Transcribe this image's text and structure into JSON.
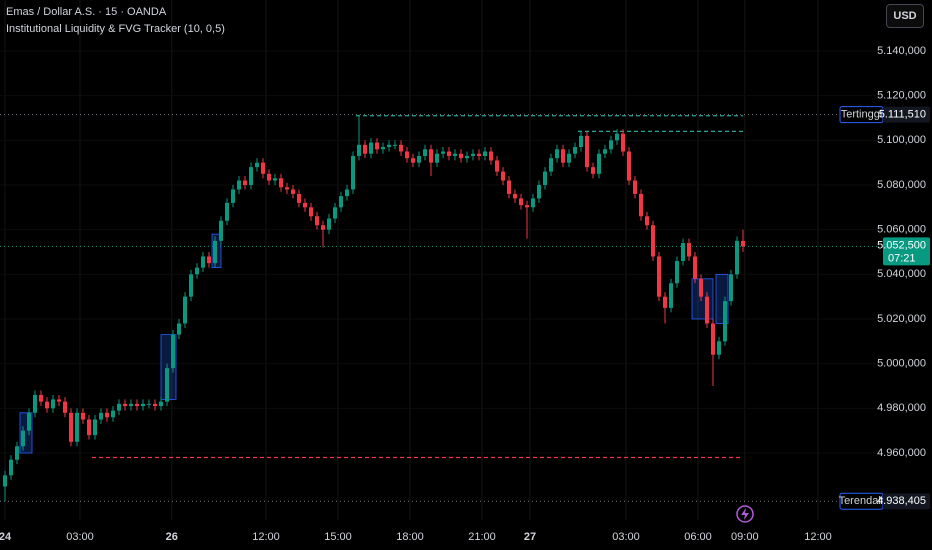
{
  "header": {
    "symbol": "Emas / Dollar A.S. · 15 · OANDA",
    "indicator": "Institutional Liquidity & FVG Tracker (10, 0,5)",
    "currency": "USD"
  },
  "chart_data": {
    "type": "candlestick",
    "up_color": "#089981",
    "down_color": "#f23645",
    "xlim": [
      -0.8333,
      145.8333
    ],
    "ylim": [
      4930000,
      5162836
    ],
    "yticks": [
      {
        "value": 4960000,
        "label": "4.960,000"
      },
      {
        "value": 4980000,
        "label": "4.980,000"
      },
      {
        "value": 5000000,
        "label": "5.000,000"
      },
      {
        "value": 5020000,
        "label": "5.020,000"
      },
      {
        "value": 5040000,
        "label": "5.040,000"
      },
      {
        "value": 5060000,
        "label": "5.060,000"
      },
      {
        "value": 5080000,
        "label": "5.080,000"
      },
      {
        "value": 5100000,
        "label": "5.100,000"
      },
      {
        "value": 5120000,
        "label": "5.120,000"
      },
      {
        "value": 5140000,
        "label": "5.140,000"
      }
    ],
    "xticks": [
      {
        "value": 0,
        "label": "24"
      },
      {
        "value": 12.5,
        "label": "03:00"
      },
      {
        "value": 27.8,
        "label": "26"
      },
      {
        "value": 43.5,
        "label": "12:00"
      },
      {
        "value": 55.5,
        "label": "15:00"
      },
      {
        "value": 67.5,
        "label": "18:00"
      },
      {
        "value": 79.5,
        "label": "21:00"
      },
      {
        "value": 87.5,
        "label": "27"
      },
      {
        "value": 103.5,
        "label": "03:00"
      },
      {
        "value": 115.5,
        "label": "06:00"
      },
      {
        "value": 123.3,
        "label": "09:00"
      },
      {
        "value": 135.5,
        "label": "12:00"
      }
    ],
    "open": [
      4945000,
      4950000,
      4957000,
      4963000,
      4970000,
      4978000,
      4986000,
      4983000,
      4980000,
      4984000,
      4983000,
      4978000,
      4965000,
      4978000,
      4975000,
      4968000,
      4975000,
      4978000,
      4976000,
      4979000,
      4982000,
      4981000,
      4982000,
      4981000,
      4982000,
      4982000,
      4981000,
      4983000,
      4998000,
      5013000,
      5018000,
      5030000,
      5040000,
      5043000,
      5048000,
      5045000,
      5055000,
      5064000,
      5072000,
      5078000,
      5082000,
      5080000,
      5088000,
      5090000,
      5085000,
      5082000,
      5083000,
      5079000,
      5078000,
      5076000,
      5072000,
      5070000,
      5066000,
      5062000,
      5060000,
      5065000,
      5070000,
      5075000,
      5078000,
      5093000,
      5098000,
      5094000,
      5099000,
      5096000,
      5097000,
      5098000,
      5098000,
      5095000,
      5092000,
      5090000,
      5093000,
      5096000,
      5090000,
      5094000,
      5095000,
      5093000,
      5094000,
      5092000,
      5093000,
      5094000,
      5093000,
      5095000,
      5091000,
      5086000,
      5082000,
      5076000,
      5074000,
      5071000,
      5070000,
      5074000,
      5080000,
      5086000,
      5092000,
      5096000,
      5090000,
      5094000,
      5097000,
      5102000,
      5088000,
      5085000,
      5094000,
      5096000,
      5100000,
      5103000,
      5095000,
      5082000,
      5076000,
      5066000,
      5062000,
      5048000,
      5030000,
      5025000,
      5036000,
      5046000,
      5054000,
      5048000,
      5038000,
      5030000,
      5018000,
      5004000,
      5010000,
      5028000,
      5040000,
      5055000
    ],
    "high": [
      4952000,
      4959000,
      4965000,
      4972000,
      4980000,
      4988000,
      4988000,
      4985000,
      4986000,
      4986000,
      4985000,
      4980000,
      4980000,
      4980000,
      4977000,
      4977000,
      4980000,
      4980000,
      4981000,
      4984000,
      4984000,
      4984000,
      4984000,
      4984000,
      4984000,
      4984000,
      4985000,
      5000000,
      5015000,
      5020000,
      5032000,
      5042000,
      5045000,
      5050000,
      5050000,
      5057000,
      5066000,
      5074000,
      5080000,
      5084000,
      5084000,
      5090000,
      5092000,
      5092000,
      5087000,
      5085000,
      5085000,
      5081000,
      5080000,
      5078000,
      5074000,
      5072000,
      5068000,
      5064000,
      5067000,
      5072000,
      5077000,
      5080000,
      5095000,
      5111510,
      5100000,
      5101000,
      5101000,
      5099000,
      5100000,
      5100000,
      5100000,
      5097000,
      5094000,
      5095000,
      5098000,
      5098000,
      5096000,
      5097000,
      5097000,
      5096000,
      5096000,
      5095000,
      5096000,
      5096000,
      5097000,
      5097000,
      5093000,
      5088000,
      5084000,
      5078000,
      5076000,
      5073000,
      5076000,
      5082000,
      5088000,
      5094000,
      5098000,
      5098000,
      5096000,
      5099000,
      5104000,
      5104000,
      5090000,
      5096000,
      5098000,
      5102000,
      5105000,
      5105000,
      5097000,
      5084000,
      5078000,
      5068000,
      5064000,
      5050000,
      5032000,
      5038000,
      5048000,
      5056000,
      5056000,
      5050000,
      5040000,
      5032000,
      5020000,
      5012000,
      5030000,
      5042000,
      5057000,
      5060000
    ],
    "low": [
      4938405,
      4948000,
      4955000,
      4961000,
      4968000,
      4976000,
      4981000,
      4978000,
      4978000,
      4981000,
      4976000,
      4963000,
      4963000,
      4973000,
      4966000,
      4966000,
      4973000,
      4974000,
      4974000,
      4977000,
      4979000,
      4979000,
      4979000,
      4979000,
      4980000,
      4979000,
      4979000,
      4981000,
      4996000,
      5011000,
      5016000,
      5028000,
      5038000,
      5041000,
      5043000,
      5043000,
      5053000,
      5062000,
      5070000,
      5076000,
      5078000,
      5078000,
      5086000,
      5083000,
      5080000,
      5080000,
      5077000,
      5076000,
      5074000,
      5070000,
      5068000,
      5064000,
      5060000,
      5052000,
      5058000,
      5063000,
      5068000,
      5073000,
      5076000,
      5091000,
      5092000,
      5092000,
      5094000,
      5094000,
      5095000,
      5096000,
      5093000,
      5090000,
      5088000,
      5088000,
      5091000,
      5084000,
      5088000,
      5092000,
      5091000,
      5091000,
      5090000,
      5090000,
      5091000,
      5091000,
      5091000,
      5089000,
      5084000,
      5080000,
      5074000,
      5072000,
      5069000,
      5056000,
      5068000,
      5072000,
      5078000,
      5084000,
      5090000,
      5088000,
      5088000,
      5092000,
      5095000,
      5086000,
      5083000,
      5083000,
      5092000,
      5094000,
      5098000,
      5093000,
      5080000,
      5074000,
      5064000,
      5060000,
      5046000,
      5028000,
      5018000,
      5023000,
      5034000,
      5044000,
      5046000,
      5036000,
      5028000,
      5016000,
      4990000,
      5002000,
      5008000,
      5026000,
      5038000,
      5050000
    ],
    "close": [
      4950000,
      4957000,
      4963000,
      4970000,
      4978000,
      4986000,
      4983000,
      4980000,
      4984000,
      4983000,
      4978000,
      4965000,
      4978000,
      4975000,
      4968000,
      4975000,
      4978000,
      4976000,
      4979000,
      4982000,
      4981000,
      4982000,
      4981000,
      4982000,
      4982000,
      4981000,
      4983000,
      4998000,
      5013000,
      5018000,
      5030000,
      5040000,
      5043000,
      5048000,
      5045000,
      5055000,
      5064000,
      5072000,
      5078000,
      5082000,
      5080000,
      5088000,
      5090000,
      5085000,
      5082000,
      5083000,
      5079000,
      5078000,
      5076000,
      5072000,
      5070000,
      5066000,
      5062000,
      5060000,
      5065000,
      5070000,
      5075000,
      5078000,
      5093000,
      5098000,
      5094000,
      5099000,
      5096000,
      5097000,
      5098000,
      5098000,
      5095000,
      5092000,
      5090000,
      5093000,
      5096000,
      5090000,
      5094000,
      5095000,
      5093000,
      5094000,
      5092000,
      5093000,
      5094000,
      5093000,
      5095000,
      5091000,
      5086000,
      5082000,
      5076000,
      5074000,
      5071000,
      5070000,
      5074000,
      5080000,
      5086000,
      5092000,
      5096000,
      5090000,
      5094000,
      5097000,
      5102000,
      5088000,
      5085000,
      5094000,
      5096000,
      5100000,
      5103000,
      5095000,
      5082000,
      5076000,
      5066000,
      5062000,
      5048000,
      5030000,
      5025000,
      5036000,
      5046000,
      5054000,
      5048000,
      5038000,
      5030000,
      5018000,
      5004000,
      5010000,
      5028000,
      5040000,
      5055000,
      5052500
    ],
    "levels": [
      {
        "value": 5111000,
        "from": 58.5,
        "to": 123,
        "color": "#26a69a"
      },
      {
        "value": 5104000,
        "from": 95.5,
        "to": 123,
        "color": "#26a69a"
      },
      {
        "value": 4958000,
        "from": 14.5,
        "to": 123,
        "color": "#f23645"
      }
    ],
    "zones": [
      {
        "from": 2.5,
        "to": 4.5,
        "low": 4960000,
        "high": 4978000
      },
      {
        "from": 26,
        "to": 28.5,
        "low": 4984000,
        "high": 5013000
      },
      {
        "from": 34.5,
        "to": 36,
        "low": 5043000,
        "high": 5058000
      },
      {
        "from": 114.5,
        "to": 118,
        "low": 5020000,
        "high": 5038000
      },
      {
        "from": 118.5,
        "to": 120.5,
        "low": 5018000,
        "high": 5040000
      }
    ],
    "price_labels": [
      {
        "name": "Tertinggi",
        "value": 5111510,
        "label": "5.111,510",
        "color": "#2962ff"
      },
      {
        "name": "Terendah",
        "value": 4938405,
        "label": "4.938,405",
        "color": "#2962ff"
      }
    ],
    "last_price": {
      "value": 5052500,
      "label": "5.052,500",
      "countdown": "07:21",
      "color": "#089981"
    }
  }
}
